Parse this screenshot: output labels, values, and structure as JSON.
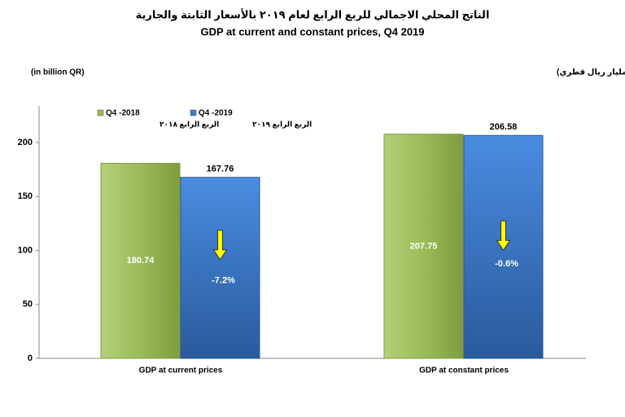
{
  "chart_data": {
    "type": "bar",
    "title_ar": "الناتج المحلي الاجمالي للربع الرابع لعام ٢٠١٩ بالأسعار الثابتة والجارية",
    "title": "GDP at current and constant prices, Q4 2019",
    "unit_en": "(in billion QR)",
    "unit_ar": "(مليار ريال قطري)",
    "categories": [
      "GDP at current prices",
      "GDP at constant prices"
    ],
    "series": [
      {
        "name": "Q4 -2018",
        "name_ar": "الربع الرابع ٢٠١٨",
        "color": "#9bbb59",
        "values": [
          180.74,
          207.75
        ]
      },
      {
        "name": "Q4 -2019",
        "name_ar": "الربع الرابع ٢٠١٩",
        "color": "#3d7cc9",
        "values": [
          167.76,
          206.58
        ]
      }
    ],
    "annotations": [
      "-7.2%",
      "-0.6%"
    ],
    "ylim": [
      0,
      230
    ],
    "yticks": [
      0,
      50,
      100,
      150,
      200
    ]
  }
}
